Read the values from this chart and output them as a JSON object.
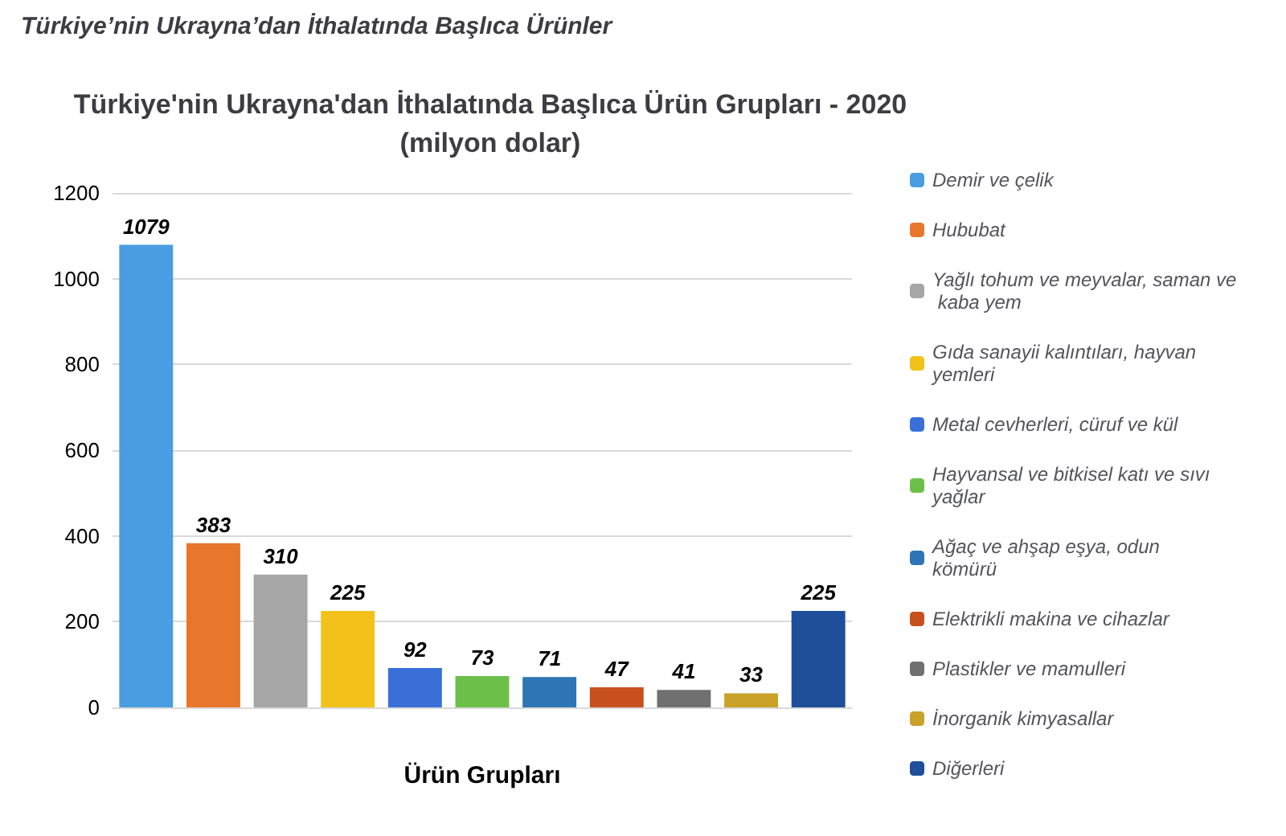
{
  "chart_data": {
    "type": "bar",
    "title": "Türkiye’nin Ukrayna’dan İthalatında Başlıca Ürünler",
    "subtitle": "Türkiye'nin Ukrayna'dan İthalatında Başlıca Ürün Grupları - 2020\n(milyon dolar)",
    "xlabel": "Ürün Grupları",
    "categories": [
      null,
      null,
      null,
      null,
      null,
      null,
      null,
      null,
      null,
      null,
      null
    ],
    "series": [
      {
        "name": "Demir ve çelik",
        "color": "#4a9de0",
        "values": [
          1079,
          null,
          null,
          null,
          null,
          null,
          null,
          null,
          null,
          null,
          null
        ]
      },
      {
        "name": "Hububat",
        "color": "#e8762b",
        "values": [
          null,
          383,
          null,
          null,
          null,
          null,
          null,
          null,
          null,
          null,
          null
        ]
      },
      {
        "name": "Yağlı tohum ve meyvalar, saman ve kaba yem",
        "color": "#a6a6a6",
        "values": [
          null,
          null,
          310,
          null,
          null,
          null,
          null,
          null,
          null,
          null,
          null
        ]
      },
      {
        "name": "Gıda sanayii kalıntıları, hayvan yemleri",
        "color": "#f2c21b",
        "values": [
          null,
          null,
          null,
          225,
          null,
          null,
          null,
          null,
          null,
          null,
          null
        ]
      },
      {
        "name": "Metal cevherleri, cüruf ve kül",
        "color": "#3a6fd8",
        "values": [
          null,
          null,
          null,
          null,
          92,
          null,
          null,
          null,
          null,
          null,
          null
        ]
      },
      {
        "name": "Hayvansal ve bitkisel katı ve sıvı yağlar",
        "color": "#6cc04a",
        "values": [
          null,
          null,
          null,
          null,
          null,
          73,
          null,
          null,
          null,
          null,
          null
        ]
      },
      {
        "name": "Ağaç ve ahşap eşya, odun kömürü",
        "color": "#2e75b6",
        "values": [
          null,
          null,
          null,
          null,
          null,
          null,
          71,
          null,
          null,
          null,
          null
        ]
      },
      {
        "name": "Elektrikli makina ve cihazlar",
        "color": "#c8501e",
        "values": [
          null,
          null,
          null,
          null,
          null,
          null,
          null,
          47,
          null,
          null,
          null
        ]
      },
      {
        "name": "Plastikler ve mamulleri",
        "color": "#707070",
        "values": [
          null,
          null,
          null,
          null,
          null,
          null,
          null,
          null,
          41,
          null,
          null
        ]
      },
      {
        "name": "İnorganik kimyasallar",
        "color": "#c9a227",
        "values": [
          null,
          null,
          null,
          null,
          null,
          null,
          null,
          null,
          null,
          33,
          null
        ]
      },
      {
        "name": "Diğerleri",
        "color": "#1f4e9a",
        "values": [
          null,
          null,
          null,
          null,
          null,
          null,
          null,
          null,
          null,
          null,
          225
        ]
      }
    ],
    "ylim": [
      0,
      1200
    ],
    "yticks": [
      0,
      200,
      400,
      600,
      800,
      1000,
      1200
    ],
    "grid": "y",
    "legend": "right",
    "data_labels": true
  }
}
